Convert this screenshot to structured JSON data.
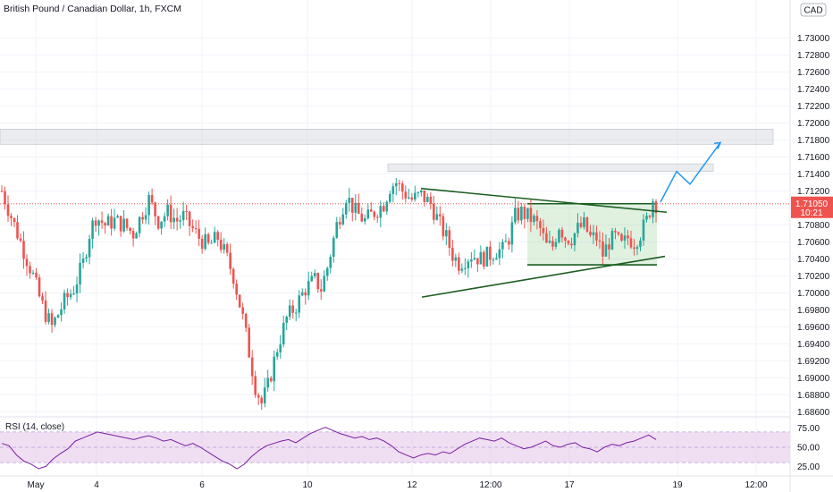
{
  "header": {
    "title": "British Pound / Canadian Dollar, 1h, FXCM",
    "currency": "CAD"
  },
  "colors": {
    "up": "#26a69a",
    "down": "#ef5350",
    "trendline": "#1b5e20",
    "zone": "#d1d4dc",
    "range_box": "#a5d6a7",
    "projection": "#2196f3",
    "rsi_line": "#7b1fa2",
    "rsi_band": "#e1bee7",
    "price_tag": "#ef5350"
  },
  "chart_data": {
    "type": "candlestick",
    "title": "British Pound / Canadian Dollar, 1h, FXCM",
    "y_ticks": [
      "1.73000",
      "1.72800",
      "1.72600",
      "1.72400",
      "1.72200",
      "1.72000",
      "1.71800",
      "1.71600",
      "1.71400",
      "1.71200",
      "1.71000",
      "1.70800",
      "1.70600",
      "1.70400",
      "1.70200",
      "1.70000",
      "1.69800",
      "1.69600",
      "1.69400",
      "1.69200",
      "1.69000",
      "1.68800",
      "1.68600"
    ],
    "ylim": [
      1.6855,
      1.7345
    ],
    "x_labels": [
      "May",
      "4",
      "6",
      "10",
      "12",
      "12:00",
      "17",
      "19",
      "12:00"
    ],
    "last_price": "1.71050",
    "countdown": "10:21",
    "close_path": [
      [
        0,
        1.712
      ],
      [
        4,
        1.708
      ],
      [
        8,
        1.704
      ],
      [
        10,
        1.702
      ],
      [
        12,
        1.6995
      ],
      [
        14,
        1.6975
      ],
      [
        16,
        1.696
      ],
      [
        18,
        1.6975
      ],
      [
        20,
        1.699
      ],
      [
        23,
        1.7005
      ],
      [
        26,
        1.7035
      ],
      [
        28,
        1.707
      ],
      [
        30,
        1.709
      ],
      [
        33,
        1.708
      ],
      [
        36,
        1.7085
      ],
      [
        39,
        1.708
      ],
      [
        42,
        1.707
      ],
      [
        45,
        1.7095
      ],
      [
        47,
        1.711
      ],
      [
        50,
        1.7085
      ],
      [
        53,
        1.7095
      ],
      [
        56,
        1.7085
      ],
      [
        58,
        1.709
      ],
      [
        61,
        1.7075
      ],
      [
        63,
        1.7065
      ],
      [
        66,
        1.7055
      ],
      [
        69,
        1.7065
      ],
      [
        72,
        1.704
      ],
      [
        74,
        1.702
      ],
      [
        77,
        1.697
      ],
      [
        79,
        1.693
      ],
      [
        81,
        1.689
      ],
      [
        83,
        1.687
      ],
      [
        85,
        1.689
      ],
      [
        88,
        1.6935
      ],
      [
        91,
        1.697
      ],
      [
        94,
        1.6985
      ],
      [
        97,
        1.7005
      ],
      [
        100,
        1.7015
      ],
      [
        102,
        1.7005
      ],
      [
        104,
        1.703
      ],
      [
        107,
        1.708
      ],
      [
        110,
        1.7115
      ],
      [
        113,
        1.7095
      ],
      [
        116,
        1.7085
      ],
      [
        119,
        1.7095
      ],
      [
        122,
        1.7105
      ],
      [
        124,
        1.7125
      ],
      [
        126,
        1.713
      ],
      [
        128,
        1.712
      ],
      [
        131,
        1.711
      ],
      [
        134,
        1.7115
      ],
      [
        137,
        1.7105
      ],
      [
        140,
        1.708
      ],
      [
        142,
        1.7065
      ],
      [
        144,
        1.7045
      ],
      [
        146,
        1.7035
      ],
      [
        148,
        1.704
      ],
      [
        150,
        1.7045
      ],
      [
        153,
        1.704
      ],
      [
        156,
        1.7045
      ],
      [
        158,
        1.705
      ],
      [
        160,
        1.705
      ],
      [
        162,
        1.7065
      ],
      [
        164,
        1.709
      ],
      [
        166,
        1.7095
      ],
      [
        168,
        1.709
      ],
      [
        170,
        1.7085
      ],
      [
        172,
        1.7075
      ],
      [
        174,
        1.7055
      ],
      [
        176,
        1.7055
      ],
      [
        178,
        1.708
      ],
      [
        180,
        1.7065
      ],
      [
        182,
        1.7065
      ],
      [
        184,
        1.7075
      ],
      [
        186,
        1.708
      ],
      [
        188,
        1.7065
      ],
      [
        190,
        1.7065
      ],
      [
        192,
        1.7045
      ],
      [
        194,
        1.706
      ],
      [
        196,
        1.7065
      ],
      [
        198,
        1.7055
      ],
      [
        200,
        1.7065
      ],
      [
        202,
        1.706
      ],
      [
        204,
        1.707
      ],
      [
        206,
        1.7085
      ],
      [
        208,
        1.711
      ],
      [
        209,
        1.7105
      ]
    ],
    "annotations": {
      "resistance_zone_upper": [
        1.7193,
        1.7175
      ],
      "resistance_zone_lower": [
        1.7152,
        1.7143
      ],
      "trend_upper": [
        [
          1.7123
        ],
        [
          1.7095
        ]
      ],
      "trend_lower": [
        [
          1.6995
        ],
        [
          1.7043
        ]
      ],
      "range_box": [
        1.7105,
        1.7033
      ],
      "projection": [
        1.7107,
        1.7143,
        1.7128,
        1.7177
      ]
    },
    "rsi": {
      "label": "RSI (14, close)",
      "ticks": [
        "75.00",
        "50.00",
        "25.00"
      ],
      "ylim": [
        15,
        85
      ],
      "band": [
        70,
        30
      ],
      "values": [
        55,
        52,
        40,
        32,
        28,
        22,
        25,
        35,
        42,
        48,
        58,
        62,
        66,
        70,
        68,
        66,
        64,
        62,
        60,
        63,
        65,
        62,
        58,
        60,
        56,
        52,
        55,
        50,
        44,
        38,
        32,
        28,
        22,
        28,
        38,
        46,
        52,
        55,
        58,
        60,
        56,
        62,
        68,
        72,
        76,
        72,
        68,
        65,
        62,
        64,
        60,
        62,
        58,
        52,
        44,
        40,
        36,
        40,
        42,
        40,
        44,
        42,
        48,
        54,
        58,
        62,
        60,
        58,
        62,
        56,
        52,
        48,
        50,
        54,
        58,
        52,
        50,
        54,
        56,
        50,
        48,
        44,
        50,
        54,
        52,
        56,
        58,
        62,
        66,
        60
      ]
    }
  }
}
